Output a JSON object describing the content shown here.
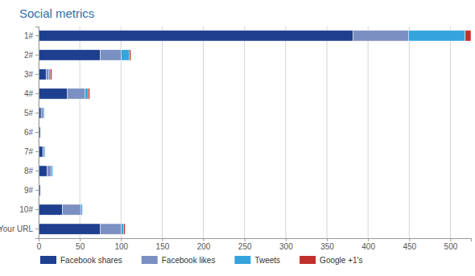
{
  "chart_data": {
    "type": "bar",
    "title": "Social metrics",
    "orientation": "horizontal",
    "stacked": true,
    "grid": true,
    "legend": "bottom",
    "categories": [
      "1#",
      "2#",
      "3#",
      "4#",
      "5#",
      "6#",
      "7#",
      "8#",
      "9#",
      "10#",
      "Your URL"
    ],
    "series": [
      {
        "name": "Facebook shares",
        "color": "#1f3f8f",
        "values": [
          382,
          75,
          9,
          35,
          3,
          2,
          5,
          10,
          2,
          29,
          75
        ]
      },
      {
        "name": "Facebook likes",
        "color": "#7b8fc2",
        "values": [
          67,
          25,
          3,
          21,
          3,
          0,
          2,
          5,
          0,
          22,
          25
        ]
      },
      {
        "name": "Tweets",
        "color": "#36a4dc",
        "values": [
          69,
          10,
          2,
          4,
          1,
          0,
          1,
          2,
          0,
          2,
          3
        ]
      },
      {
        "name": "Google +1's",
        "color": "#c2302c",
        "values": [
          7,
          2,
          2,
          2,
          0,
          0,
          0,
          0,
          0,
          0,
          2
        ]
      }
    ],
    "xlim": [
      0,
      525
    ],
    "xticks": [
      0,
      50,
      100,
      150,
      200,
      250,
      300,
      350,
      400,
      450,
      500
    ]
  }
}
